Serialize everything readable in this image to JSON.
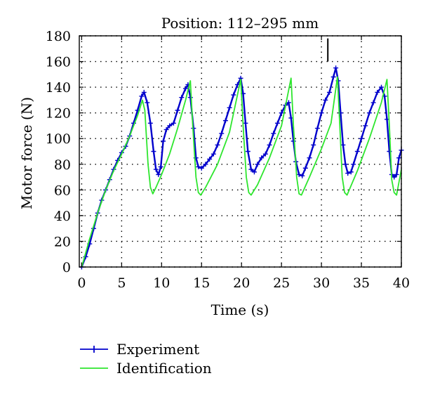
{
  "chart_data": {
    "type": "line",
    "title": "Position: 112–295 mm",
    "xlabel": "Time (s)",
    "ylabel": "Motor force (N)",
    "xlim": [
      -0.3,
      40
    ],
    "ylim": [
      0,
      180
    ],
    "xticks": [
      0,
      5,
      10,
      15,
      20,
      25,
      30,
      35,
      40
    ],
    "yticks": [
      0,
      20,
      40,
      60,
      80,
      100,
      120,
      140,
      160,
      180
    ],
    "grid": true,
    "legend_position": "below-left",
    "marker_line": {
      "x": 30.8,
      "y_from": 160,
      "y_to": 178
    },
    "series": [
      {
        "name": "Experiment",
        "color": "#0000cc",
        "marker": "plus",
        "points": [
          [
            0,
            0
          ],
          [
            0.5,
            8
          ],
          [
            1,
            18
          ],
          [
            1.5,
            30
          ],
          [
            2,
            42
          ],
          [
            2.5,
            52
          ],
          [
            3,
            60
          ],
          [
            3.5,
            68
          ],
          [
            4,
            76
          ],
          [
            4.5,
            83
          ],
          [
            5,
            89
          ],
          [
            5.5,
            94
          ],
          [
            6,
            102
          ],
          [
            6.5,
            112
          ],
          [
            7,
            122
          ],
          [
            7.5,
            133
          ],
          [
            7.8,
            136
          ],
          [
            8.2,
            128
          ],
          [
            8.6,
            112
          ],
          [
            9,
            90
          ],
          [
            9.3,
            76
          ],
          [
            9.6,
            72
          ],
          [
            9.9,
            78
          ],
          [
            10.2,
            98
          ],
          [
            10.6,
            107
          ],
          [
            11,
            110
          ],
          [
            11.5,
            112
          ],
          [
            12,
            122
          ],
          [
            12.5,
            132
          ],
          [
            13,
            139
          ],
          [
            13.3,
            142
          ],
          [
            13.6,
            132
          ],
          [
            14,
            108
          ],
          [
            14.3,
            85
          ],
          [
            14.6,
            78
          ],
          [
            15,
            77
          ],
          [
            15.5,
            80
          ],
          [
            16,
            84
          ],
          [
            16.5,
            88
          ],
          [
            17,
            95
          ],
          [
            17.5,
            104
          ],
          [
            18,
            114
          ],
          [
            18.5,
            124
          ],
          [
            19,
            134
          ],
          [
            19.5,
            142
          ],
          [
            19.9,
            147
          ],
          [
            20.2,
            135
          ],
          [
            20.5,
            112
          ],
          [
            20.8,
            90
          ],
          [
            21.2,
            76
          ],
          [
            21.6,
            74
          ],
          [
            22,
            80
          ],
          [
            22.5,
            85
          ],
          [
            23,
            88
          ],
          [
            23.5,
            95
          ],
          [
            24,
            104
          ],
          [
            24.5,
            112
          ],
          [
            25,
            120
          ],
          [
            25.5,
            126
          ],
          [
            25.9,
            128
          ],
          [
            26.2,
            116
          ],
          [
            26.5,
            98
          ],
          [
            26.8,
            82
          ],
          [
            27.2,
            72
          ],
          [
            27.6,
            71
          ],
          [
            28,
            77
          ],
          [
            28.5,
            85
          ],
          [
            29,
            95
          ],
          [
            29.5,
            108
          ],
          [
            30,
            120
          ],
          [
            30.5,
            130
          ],
          [
            31,
            136
          ],
          [
            31.5,
            148
          ],
          [
            31.8,
            155
          ],
          [
            32.1,
            145
          ],
          [
            32.4,
            120
          ],
          [
            32.7,
            95
          ],
          [
            33,
            80
          ],
          [
            33.3,
            73
          ],
          [
            33.7,
            74
          ],
          [
            34,
            80
          ],
          [
            34.5,
            90
          ],
          [
            35,
            100
          ],
          [
            35.5,
            110
          ],
          [
            36,
            120
          ],
          [
            36.5,
            128
          ],
          [
            37,
            136
          ],
          [
            37.5,
            140
          ],
          [
            37.9,
            133
          ],
          [
            38.2,
            115
          ],
          [
            38.5,
            90
          ],
          [
            38.8,
            72
          ],
          [
            39.1,
            70
          ],
          [
            39.4,
            72
          ],
          [
            39.7,
            85
          ],
          [
            40,
            91
          ]
        ]
      },
      {
        "name": "Identification",
        "color": "#2ee62e",
        "marker": "none",
        "points": [
          [
            0,
            0
          ],
          [
            1,
            22
          ],
          [
            2,
            42
          ],
          [
            3,
            60
          ],
          [
            4,
            75
          ],
          [
            5,
            88
          ],
          [
            6,
            102
          ],
          [
            7,
            118
          ],
          [
            7.6,
            130
          ],
          [
            7.9,
            122
          ],
          [
            8.3,
            80
          ],
          [
            8.6,
            62
          ],
          [
            8.9,
            57
          ],
          [
            9.3,
            62
          ],
          [
            10,
            72
          ],
          [
            11,
            88
          ],
          [
            12,
            108
          ],
          [
            13,
            130
          ],
          [
            13.6,
            145
          ],
          [
            13.9,
            110
          ],
          [
            14.3,
            70
          ],
          [
            14.6,
            58
          ],
          [
            14.9,
            56
          ],
          [
            15.5,
            62
          ],
          [
            17,
            80
          ],
          [
            18.5,
            105
          ],
          [
            19.9,
            146
          ],
          [
            20.2,
            110
          ],
          [
            20.6,
            70
          ],
          [
            20.9,
            58
          ],
          [
            21.2,
            56
          ],
          [
            22,
            64
          ],
          [
            23.5,
            85
          ],
          [
            25,
            110
          ],
          [
            26.2,
            147
          ],
          [
            26.5,
            110
          ],
          [
            26.9,
            70
          ],
          [
            27.2,
            57
          ],
          [
            27.5,
            56
          ],
          [
            28.5,
            70
          ],
          [
            30,
            92
          ],
          [
            31.2,
            112
          ],
          [
            32,
            148
          ],
          [
            32.3,
            110
          ],
          [
            32.6,
            70
          ],
          [
            32.9,
            58
          ],
          [
            33.2,
            56
          ],
          [
            34.5,
            75
          ],
          [
            36,
            100
          ],
          [
            37.5,
            128
          ],
          [
            38.2,
            146
          ],
          [
            38.5,
            110
          ],
          [
            38.8,
            68
          ],
          [
            39.1,
            58
          ],
          [
            39.4,
            56
          ],
          [
            40,
            76
          ]
        ]
      }
    ]
  }
}
